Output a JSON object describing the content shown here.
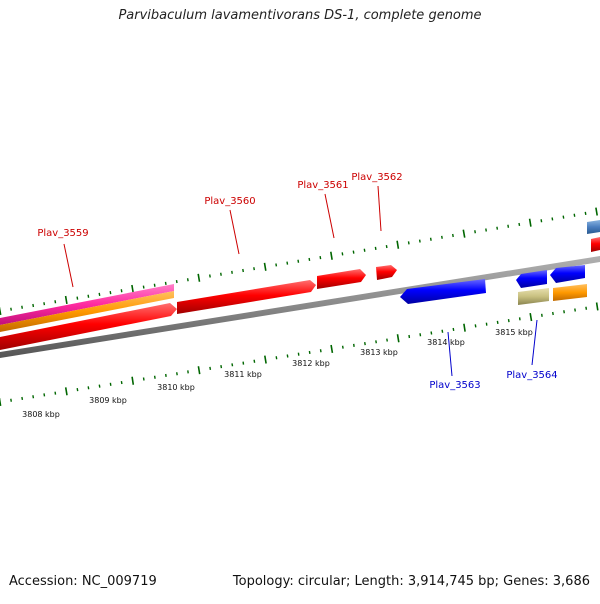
{
  "title": "Parvibaculum lavamentivorans DS-1, complete genome",
  "footer": {
    "accession": "Accession: NC_009719",
    "summary": "Topology: circular; Length: 3,914,745 bp; Genes: 3,686"
  },
  "colors": {
    "forward_gene": "#ff0000",
    "reverse_gene": "#0000ff",
    "forward_label": "#cc0000",
    "reverse_label": "#0000cc",
    "tick": "#006600",
    "backbone": "#888888",
    "track_magenta": "#ff33aa",
    "track_orange": "#ff9900",
    "track_khaki": "#c8c080",
    "track_steelblue": "#4a7ebf"
  },
  "axis": {
    "unit": "kbp",
    "ticks": [
      {
        "kbp": 3808,
        "label": "3808 kbp"
      },
      {
        "kbp": 3809,
        "label": "3809 kbp"
      },
      {
        "kbp": 3810,
        "label": "3810 kbp"
      },
      {
        "kbp": 3811,
        "label": "3811 kbp"
      },
      {
        "kbp": 3812,
        "label": "3812 kbp"
      },
      {
        "kbp": 3813,
        "label": "3813 kbp"
      },
      {
        "kbp": 3814,
        "label": "3814 kbp"
      },
      {
        "kbp": 3815,
        "label": "3815 kbp"
      }
    ]
  },
  "genes": [
    {
      "name": "Plav_3559",
      "strand": "+"
    },
    {
      "name": "Plav_3560",
      "strand": "+"
    },
    {
      "name": "Plav_3561",
      "strand": "+"
    },
    {
      "name": "Plav_3562",
      "strand": "+"
    },
    {
      "name": "Plav_3563",
      "strand": "-"
    },
    {
      "name": "Plav_3564",
      "strand": "-"
    }
  ]
}
